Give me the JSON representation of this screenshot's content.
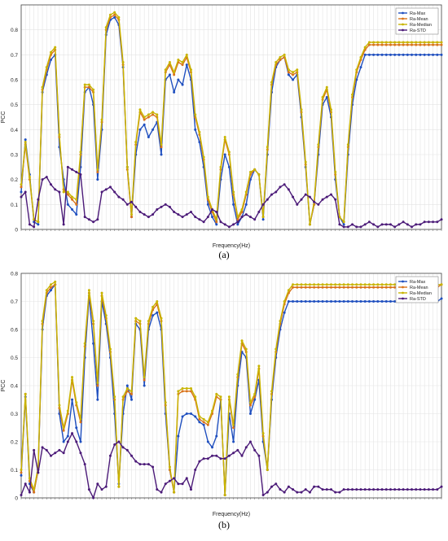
{
  "chart_data": [
    {
      "panel": "a",
      "caption": "(a)",
      "type": "line",
      "xlabel": "Frequency(Hz)",
      "ylabel": "PCC",
      "ylim": [
        0,
        0.9
      ],
      "yticks": [
        0,
        0.1,
        0.2,
        0.3,
        0.4,
        0.5,
        0.6,
        0.7,
        0.8
      ],
      "grid": true,
      "legend": "top-right",
      "x": [
        1,
        2,
        3,
        4,
        5,
        6,
        7,
        8,
        9,
        10,
        11,
        12,
        13,
        14,
        15,
        16,
        17,
        18,
        19,
        20,
        21,
        22,
        23,
        24,
        25,
        26,
        27,
        28,
        29,
        30,
        31,
        32,
        33,
        34,
        35,
        36,
        37,
        38,
        39,
        40,
        41,
        42,
        43,
        44,
        45,
        46,
        47,
        48,
        49,
        50,
        51,
        52,
        53,
        54,
        55,
        56,
        57,
        58,
        59,
        60,
        61,
        62,
        63,
        64,
        65,
        66,
        67,
        68,
        69,
        70,
        71,
        72,
        73,
        74,
        75,
        76,
        77,
        78,
        79,
        80,
        81,
        82,
        83,
        84,
        85,
        86,
        87,
        88,
        89,
        90,
        91,
        92,
        93,
        94,
        95,
        96,
        97,
        98,
        99,
        100
      ],
      "series": [
        {
          "name": "Ra-Max",
          "color": "#1f4fbf",
          "values": [
            0.15,
            0.36,
            0.22,
            0.03,
            0.02,
            0.55,
            0.62,
            0.68,
            0.7,
            0.33,
            0.2,
            0.1,
            0.08,
            0.06,
            0.25,
            0.55,
            0.57,
            0.5,
            0.2,
            0.4,
            0.78,
            0.84,
            0.85,
            0.82,
            0.65,
            0.25,
            0.05,
            0.3,
            0.4,
            0.42,
            0.37,
            0.4,
            0.43,
            0.3,
            0.6,
            0.62,
            0.55,
            0.6,
            0.58,
            0.66,
            0.6,
            0.4,
            0.35,
            0.25,
            0.1,
            0.05,
            0.02,
            0.2,
            0.3,
            0.25,
            0.1,
            0.02,
            0.05,
            0.1,
            0.2,
            0.24,
            0.22,
            0.04,
            0.3,
            0.55,
            0.65,
            0.68,
            0.69,
            0.62,
            0.6,
            0.62,
            0.45,
            0.25,
            0.02,
            0.1,
            0.3,
            0.5,
            0.53,
            0.45,
            0.2,
            0.05,
            0.02,
            0.3,
            0.5,
            0.6,
            0.65,
            0.7,
            0.7,
            0.7,
            0.7,
            0.7,
            0.7,
            0.7,
            0.7,
            0.7,
            0.7,
            0.7,
            0.7,
            0.7,
            0.7,
            0.7,
            0.7,
            0.7,
            0.7,
            0.7
          ]
        },
        {
          "name": "Ra-Mean",
          "color": "#d9731a",
          "values": [
            0.17,
            0.34,
            0.2,
            0.04,
            0.03,
            0.56,
            0.64,
            0.7,
            0.72,
            0.37,
            0.16,
            0.14,
            0.12,
            0.1,
            0.3,
            0.57,
            0.57,
            0.55,
            0.23,
            0.43,
            0.8,
            0.85,
            0.86,
            0.84,
            0.66,
            0.24,
            0.05,
            0.34,
            0.47,
            0.44,
            0.45,
            0.46,
            0.45,
            0.33,
            0.63,
            0.66,
            0.62,
            0.67,
            0.66,
            0.69,
            0.63,
            0.45,
            0.38,
            0.28,
            0.12,
            0.07,
            0.03,
            0.24,
            0.36,
            0.3,
            0.14,
            0.04,
            0.07,
            0.14,
            0.22,
            0.24,
            0.22,
            0.05,
            0.32,
            0.58,
            0.66,
            0.68,
            0.69,
            0.63,
            0.62,
            0.63,
            0.47,
            0.26,
            0.02,
            0.1,
            0.33,
            0.52,
            0.56,
            0.47,
            0.22,
            0.05,
            0.03,
            0.33,
            0.53,
            0.63,
            0.68,
            0.72,
            0.74,
            0.74,
            0.74,
            0.74,
            0.74,
            0.74,
            0.74,
            0.74,
            0.74,
            0.74,
            0.74,
            0.74,
            0.74,
            0.74,
            0.74,
            0.74,
            0.74,
            0.74
          ]
        },
        {
          "name": "Ra-Median",
          "color": "#c8b400",
          "values": [
            0.18,
            0.35,
            0.21,
            0.04,
            0.03,
            0.57,
            0.65,
            0.71,
            0.73,
            0.38,
            0.15,
            0.15,
            0.13,
            0.12,
            0.31,
            0.58,
            0.58,
            0.56,
            0.24,
            0.44,
            0.81,
            0.86,
            0.87,
            0.85,
            0.67,
            0.25,
            0.06,
            0.35,
            0.48,
            0.45,
            0.46,
            0.47,
            0.46,
            0.34,
            0.64,
            0.67,
            0.63,
            0.68,
            0.67,
            0.7,
            0.64,
            0.46,
            0.39,
            0.29,
            0.13,
            0.08,
            0.04,
            0.25,
            0.37,
            0.31,
            0.15,
            0.05,
            0.08,
            0.15,
            0.23,
            0.24,
            0.22,
            0.05,
            0.33,
            0.59,
            0.67,
            0.69,
            0.7,
            0.64,
            0.63,
            0.64,
            0.48,
            0.27,
            0.02,
            0.11,
            0.34,
            0.53,
            0.57,
            0.48,
            0.23,
            0.05,
            0.03,
            0.34,
            0.54,
            0.64,
            0.69,
            0.73,
            0.75,
            0.75,
            0.75,
            0.75,
            0.75,
            0.75,
            0.75,
            0.75,
            0.75,
            0.75,
            0.75,
            0.75,
            0.75,
            0.75,
            0.75,
            0.75,
            0.75,
            0.75
          ]
        },
        {
          "name": "Ra-STD",
          "color": "#4b1a78",
          "values": [
            0.13,
            0.15,
            0.02,
            0.01,
            0.12,
            0.2,
            0.21,
            0.18,
            0.16,
            0.15,
            0.02,
            0.25,
            0.24,
            0.23,
            0.22,
            0.05,
            0.04,
            0.03,
            0.04,
            0.15,
            0.16,
            0.17,
            0.15,
            0.13,
            0.12,
            0.1,
            0.11,
            0.09,
            0.07,
            0.06,
            0.05,
            0.06,
            0.08,
            0.09,
            0.1,
            0.09,
            0.07,
            0.06,
            0.05,
            0.06,
            0.07,
            0.05,
            0.04,
            0.03,
            0.05,
            0.08,
            0.07,
            0.03,
            0.02,
            0.01,
            0.02,
            0.03,
            0.05,
            0.06,
            0.05,
            0.04,
            0.07,
            0.1,
            0.12,
            0.14,
            0.15,
            0.17,
            0.18,
            0.16,
            0.13,
            0.1,
            0.12,
            0.14,
            0.13,
            0.11,
            0.1,
            0.12,
            0.13,
            0.14,
            0.12,
            0.02,
            0.01,
            0.01,
            0.02,
            0.01,
            0.01,
            0.02,
            0.03,
            0.02,
            0.01,
            0.02,
            0.02,
            0.02,
            0.01,
            0.02,
            0.03,
            0.02,
            0.01,
            0.02,
            0.02,
            0.03,
            0.03,
            0.03,
            0.03,
            0.04
          ]
        }
      ]
    },
    {
      "panel": "b",
      "caption": "(b)",
      "type": "line",
      "xlabel": "Frequency(Hz)",
      "ylabel": "PCC",
      "ylim": [
        0,
        0.8
      ],
      "yticks": [
        0,
        0.1,
        0.2,
        0.3,
        0.4,
        0.5,
        0.6,
        0.7,
        0.8
      ],
      "grid": true,
      "legend": "top-right",
      "x": [
        1,
        2,
        3,
        4,
        5,
        6,
        7,
        8,
        9,
        10,
        11,
        12,
        13,
        14,
        15,
        16,
        17,
        18,
        19,
        20,
        21,
        22,
        23,
        24,
        25,
        26,
        27,
        28,
        29,
        30,
        31,
        32,
        33,
        34,
        35,
        36,
        37,
        38,
        39,
        40,
        41,
        42,
        43,
        44,
        45,
        46,
        47,
        48,
        49,
        50,
        51,
        52,
        53,
        54,
        55,
        56,
        57,
        58,
        59,
        60,
        61,
        62,
        63,
        64,
        65,
        66,
        67,
        68,
        69,
        70,
        71,
        72,
        73,
        74,
        75,
        76,
        77,
        78,
        79,
        80,
        81,
        82,
        83,
        84,
        85,
        86,
        87,
        88,
        89,
        90,
        91,
        92,
        93,
        94,
        95,
        96,
        97,
        98,
        99,
        100
      ],
      "series": [
        {
          "name": "Ra-Max",
          "color": "#1f4fbf",
          "values": [
            0.08,
            0.36,
            0.05,
            0.02,
            0.1,
            0.6,
            0.72,
            0.74,
            0.76,
            0.3,
            0.2,
            0.22,
            0.35,
            0.25,
            0.2,
            0.5,
            0.72,
            0.55,
            0.35,
            0.7,
            0.62,
            0.5,
            0.3,
            0.05,
            0.3,
            0.4,
            0.35,
            0.62,
            0.6,
            0.4,
            0.6,
            0.65,
            0.66,
            0.6,
            0.3,
            0.1,
            0.02,
            0.22,
            0.29,
            0.3,
            0.3,
            0.29,
            0.27,
            0.26,
            0.2,
            0.18,
            0.22,
            0.35,
            0.01,
            0.3,
            0.2,
            0.4,
            0.52,
            0.5,
            0.3,
            0.35,
            0.42,
            0.2,
            0.1,
            0.35,
            0.5,
            0.6,
            0.66,
            0.7,
            0.7,
            0.7,
            0.7,
            0.7,
            0.7,
            0.7,
            0.7,
            0.7,
            0.7,
            0.7,
            0.7,
            0.7,
            0.7,
            0.7,
            0.7,
            0.7,
            0.7,
            0.7,
            0.7,
            0.7,
            0.7,
            0.7,
            0.7,
            0.7,
            0.7,
            0.7,
            0.7,
            0.7,
            0.7,
            0.7,
            0.7,
            0.7,
            0.7,
            0.7,
            0.7,
            0.71
          ]
        },
        {
          "name": "Ra-Mean",
          "color": "#d9731a",
          "values": [
            0.09,
            0.37,
            0.06,
            0.02,
            0.1,
            0.62,
            0.73,
            0.75,
            0.76,
            0.32,
            0.24,
            0.3,
            0.42,
            0.33,
            0.27,
            0.54,
            0.73,
            0.62,
            0.4,
            0.72,
            0.64,
            0.52,
            0.35,
            0.04,
            0.35,
            0.38,
            0.37,
            0.63,
            0.62,
            0.42,
            0.62,
            0.67,
            0.69,
            0.63,
            0.33,
            0.1,
            0.02,
            0.37,
            0.38,
            0.38,
            0.38,
            0.35,
            0.28,
            0.27,
            0.26,
            0.3,
            0.36,
            0.35,
            0.01,
            0.35,
            0.25,
            0.43,
            0.55,
            0.52,
            0.33,
            0.36,
            0.46,
            0.22,
            0.1,
            0.37,
            0.52,
            0.62,
            0.69,
            0.73,
            0.75,
            0.75,
            0.75,
            0.75,
            0.75,
            0.75,
            0.75,
            0.75,
            0.75,
            0.75,
            0.75,
            0.75,
            0.75,
            0.75,
            0.75,
            0.75,
            0.75,
            0.75,
            0.75,
            0.75,
            0.75,
            0.75,
            0.75,
            0.75,
            0.75,
            0.75,
            0.75,
            0.75,
            0.75,
            0.75,
            0.75,
            0.75,
            0.75,
            0.75,
            0.75,
            0.76
          ]
        },
        {
          "name": "Ra-Median",
          "color": "#c8b400",
          "values": [
            0.1,
            0.37,
            0.07,
            0.03,
            0.11,
            0.63,
            0.74,
            0.76,
            0.77,
            0.33,
            0.25,
            0.31,
            0.43,
            0.34,
            0.28,
            0.55,
            0.74,
            0.63,
            0.41,
            0.73,
            0.65,
            0.53,
            0.36,
            0.04,
            0.36,
            0.39,
            0.38,
            0.64,
            0.63,
            0.43,
            0.63,
            0.68,
            0.7,
            0.64,
            0.34,
            0.11,
            0.02,
            0.38,
            0.39,
            0.39,
            0.39,
            0.36,
            0.29,
            0.28,
            0.27,
            0.31,
            0.37,
            0.36,
            0.01,
            0.36,
            0.26,
            0.44,
            0.56,
            0.53,
            0.34,
            0.37,
            0.47,
            0.23,
            0.1,
            0.38,
            0.53,
            0.63,
            0.7,
            0.74,
            0.76,
            0.76,
            0.76,
            0.76,
            0.76,
            0.76,
            0.76,
            0.76,
            0.76,
            0.76,
            0.76,
            0.76,
            0.76,
            0.76,
            0.76,
            0.76,
            0.76,
            0.76,
            0.76,
            0.76,
            0.76,
            0.76,
            0.76,
            0.76,
            0.76,
            0.76,
            0.76,
            0.76,
            0.76,
            0.76,
            0.76,
            0.76,
            0.76,
            0.76,
            0.76,
            0.76
          ]
        },
        {
          "name": "Ra-STD",
          "color": "#4b1a78",
          "values": [
            0.01,
            0.05,
            0.02,
            0.17,
            0.09,
            0.18,
            0.17,
            0.15,
            0.16,
            0.17,
            0.16,
            0.2,
            0.23,
            0.2,
            0.16,
            0.12,
            0.03,
            0.0,
            0.05,
            0.03,
            0.04,
            0.15,
            0.19,
            0.2,
            0.18,
            0.17,
            0.15,
            0.13,
            0.12,
            0.12,
            0.12,
            0.11,
            0.03,
            0.02,
            0.05,
            0.06,
            0.07,
            0.05,
            0.05,
            0.07,
            0.03,
            0.1,
            0.13,
            0.14,
            0.14,
            0.15,
            0.15,
            0.14,
            0.14,
            0.15,
            0.16,
            0.17,
            0.15,
            0.18,
            0.2,
            0.17,
            0.15,
            0.01,
            0.02,
            0.04,
            0.05,
            0.03,
            0.02,
            0.04,
            0.03,
            0.02,
            0.02,
            0.03,
            0.02,
            0.04,
            0.04,
            0.03,
            0.03,
            0.03,
            0.02,
            0.02,
            0.03,
            0.03,
            0.03,
            0.03,
            0.03,
            0.03,
            0.03,
            0.03,
            0.03,
            0.03,
            0.03,
            0.03,
            0.03,
            0.03,
            0.03,
            0.03,
            0.03,
            0.03,
            0.03,
            0.03,
            0.03,
            0.03,
            0.03,
            0.04
          ]
        }
      ]
    }
  ]
}
